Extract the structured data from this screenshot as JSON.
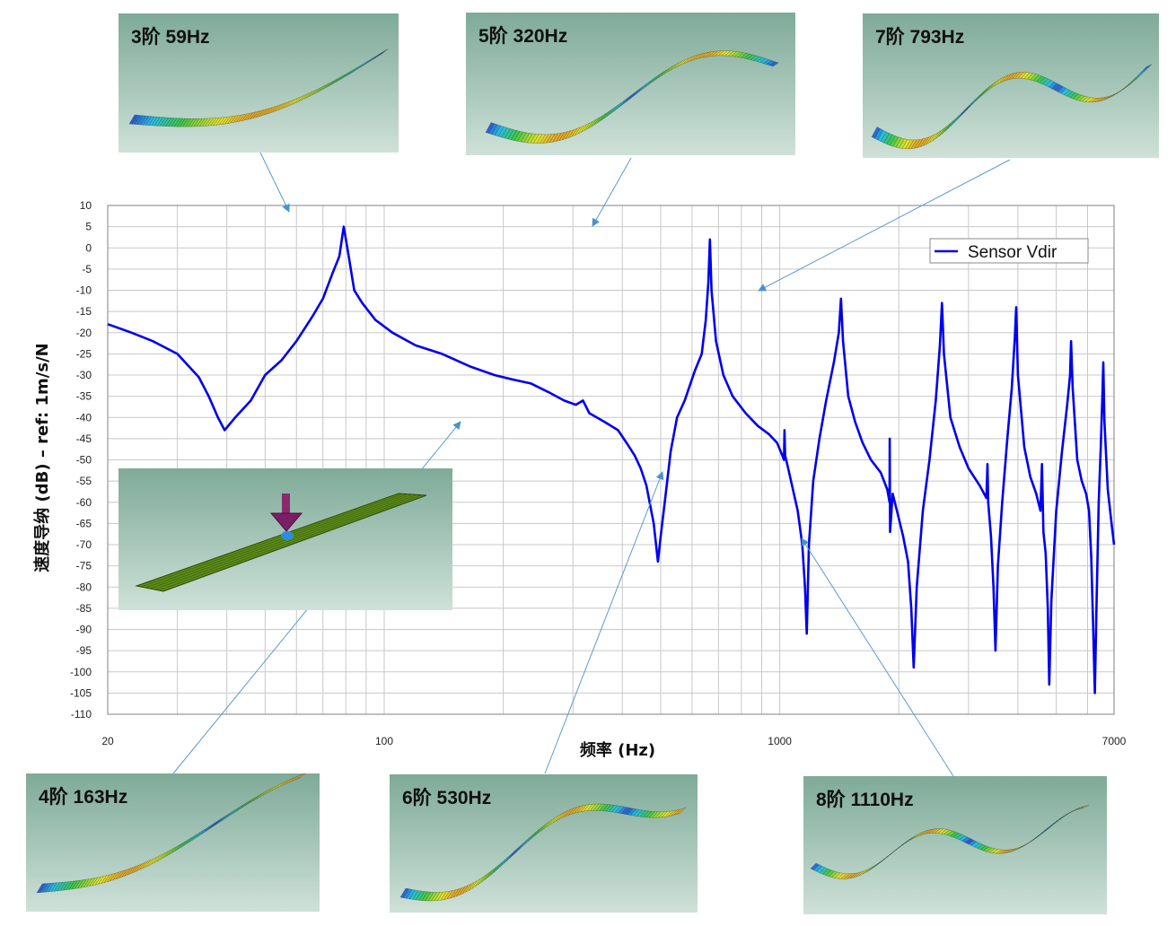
{
  "chart_data": {
    "type": "line",
    "title": "",
    "xlabel": "频率 (Hz)",
    "ylabel": "速度导纳 (dB) – ref: 1m/s/N",
    "x_scale": "log",
    "xlim": [
      20,
      7000
    ],
    "ylim": [
      -110,
      10
    ],
    "x_tick_labels": [
      "20",
      "100",
      "1000",
      "7000"
    ],
    "y_ticks": [
      10,
      5,
      0,
      -5,
      -10,
      -15,
      -20,
      -25,
      -30,
      -35,
      -40,
      -45,
      -50,
      -55,
      -60,
      -65,
      -70,
      -75,
      -80,
      -85,
      -90,
      -95,
      -100,
      -105,
      -110
    ],
    "grid": true,
    "legend": {
      "position": "top-right",
      "entries": [
        "Sensor Vdir"
      ]
    },
    "series": [
      {
        "name": "Sensor Vdir",
        "color": "#0000ee",
        "points": [
          [
            20,
            -18
          ],
          [
            23,
            -20
          ],
          [
            26,
            -22
          ],
          [
            30,
            -25
          ],
          [
            34,
            -30.5
          ],
          [
            36,
            -35
          ],
          [
            38,
            -40
          ],
          [
            39.5,
            -43
          ],
          [
            42,
            -40
          ],
          [
            46,
            -36
          ],
          [
            50,
            -30
          ],
          [
            55,
            -26.5
          ],
          [
            60,
            -22
          ],
          [
            66,
            -16
          ],
          [
            70,
            -12
          ],
          [
            74,
            -6
          ],
          [
            77,
            -2
          ],
          [
            79,
            5
          ],
          [
            81,
            -1
          ],
          [
            84,
            -10
          ],
          [
            88,
            -13
          ],
          [
            95,
            -17
          ],
          [
            105,
            -20
          ],
          [
            120,
            -23
          ],
          [
            140,
            -25
          ],
          [
            165,
            -28
          ],
          [
            190,
            -30
          ],
          [
            210,
            -31
          ],
          [
            235,
            -32
          ],
          [
            260,
            -34
          ],
          [
            285,
            -36
          ],
          [
            305,
            -37
          ],
          [
            318,
            -36
          ],
          [
            330,
            -39
          ],
          [
            360,
            -41
          ],
          [
            390,
            -43
          ],
          [
            410,
            -46
          ],
          [
            430,
            -49
          ],
          [
            445,
            -52
          ],
          [
            460,
            -56
          ],
          [
            480,
            -65
          ],
          [
            492,
            -74
          ],
          [
            500,
            -68
          ],
          [
            515,
            -58
          ],
          [
            530,
            -48
          ],
          [
            550,
            -40
          ],
          [
            575,
            -36
          ],
          [
            610,
            -29
          ],
          [
            635,
            -25
          ],
          [
            650,
            -17
          ],
          [
            660,
            -8
          ],
          [
            666,
            2
          ],
          [
            672,
            -10
          ],
          [
            690,
            -22
          ],
          [
            720,
            -30
          ],
          [
            760,
            -35
          ],
          [
            820,
            -39
          ],
          [
            880,
            -42
          ],
          [
            940,
            -44
          ],
          [
            985,
            -46
          ],
          [
            1015,
            -49
          ],
          [
            1025,
            -50
          ],
          [
            1028,
            -43
          ],
          [
            1032,
            -49
          ],
          [
            1050,
            -52
          ],
          [
            1080,
            -57
          ],
          [
            1110,
            -62
          ],
          [
            1140,
            -70
          ],
          [
            1158,
            -80
          ],
          [
            1170,
            -91
          ],
          [
            1185,
            -70
          ],
          [
            1215,
            -55
          ],
          [
            1260,
            -45
          ],
          [
            1310,
            -36
          ],
          [
            1370,
            -27
          ],
          [
            1410,
            -20
          ],
          [
            1428,
            -12
          ],
          [
            1445,
            -22
          ],
          [
            1490,
            -35
          ],
          [
            1550,
            -41
          ],
          [
            1620,
            -46
          ],
          [
            1700,
            -50
          ],
          [
            1800,
            -53
          ],
          [
            1870,
            -57
          ],
          [
            1895,
            -60
          ],
          [
            1897,
            -45
          ],
          [
            1900,
            -67
          ],
          [
            1930,
            -58
          ],
          [
            1990,
            -63
          ],
          [
            2050,
            -68
          ],
          [
            2110,
            -74
          ],
          [
            2150,
            -85
          ],
          [
            2180,
            -99
          ],
          [
            2220,
            -80
          ],
          [
            2300,
            -62
          ],
          [
            2390,
            -50
          ],
          [
            2480,
            -36
          ],
          [
            2540,
            -23
          ],
          [
            2570,
            -13
          ],
          [
            2600,
            -25
          ],
          [
            2700,
            -40
          ],
          [
            2850,
            -47
          ],
          [
            3000,
            -52
          ],
          [
            3200,
            -56
          ],
          [
            3330,
            -59
          ],
          [
            3350,
            -51
          ],
          [
            3365,
            -60
          ],
          [
            3420,
            -68
          ],
          [
            3470,
            -80
          ],
          [
            3510,
            -95
          ],
          [
            3560,
            -75
          ],
          [
            3650,
            -60
          ],
          [
            3760,
            -45
          ],
          [
            3860,
            -33
          ],
          [
            3930,
            -21
          ],
          [
            3960,
            -14
          ],
          [
            4000,
            -30
          ],
          [
            4150,
            -47
          ],
          [
            4300,
            -54
          ],
          [
            4450,
            -58
          ],
          [
            4560,
            -62
          ],
          [
            4600,
            -51
          ],
          [
            4640,
            -67
          ],
          [
            4700,
            -72
          ],
          [
            4760,
            -85
          ],
          [
            4800,
            -103
          ],
          [
            4860,
            -83
          ],
          [
            5000,
            -62
          ],
          [
            5170,
            -48
          ],
          [
            5330,
            -37
          ],
          [
            5420,
            -30
          ],
          [
            5450,
            -22
          ],
          [
            5500,
            -33
          ],
          [
            5650,
            -50
          ],
          [
            5800,
            -55
          ],
          [
            5950,
            -58
          ],
          [
            6050,
            -62
          ],
          [
            6130,
            -73
          ],
          [
            6200,
            -90
          ],
          [
            6260,
            -105
          ],
          [
            6320,
            -85
          ],
          [
            6400,
            -60
          ],
          [
            6480,
            -47
          ],
          [
            6540,
            -35
          ],
          [
            6575,
            -27
          ],
          [
            6620,
            -41
          ],
          [
            6750,
            -57
          ],
          [
            6900,
            -65
          ],
          [
            7000,
            -70
          ]
        ]
      }
    ],
    "mode_annotations": [
      {
        "label": "3阶 59Hz"
      },
      {
        "label": "4阶 163Hz"
      },
      {
        "label": "5阶 320Hz"
      },
      {
        "label": "6阶 530Hz"
      },
      {
        "label": "7阶 793Hz"
      },
      {
        "label": "8阶 1110Hz"
      }
    ]
  }
}
